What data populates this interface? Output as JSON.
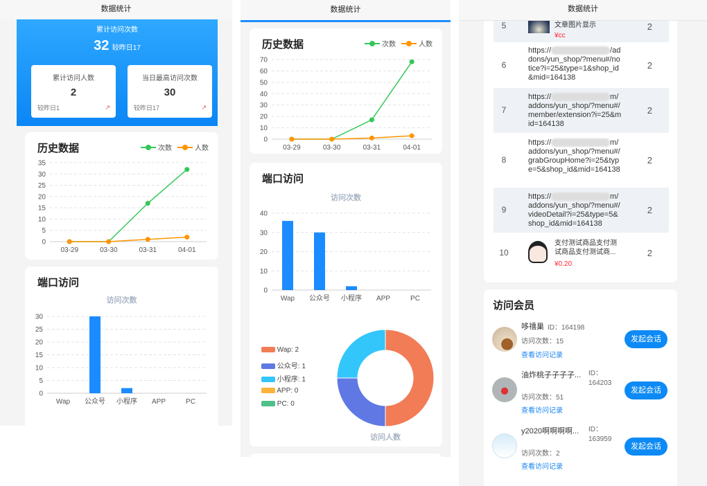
{
  "header_title": "数据统计",
  "summary": {
    "total_visits_label": "累计访问次数",
    "total_visits": "32",
    "total_visits_delta": "较昨日17",
    "cards": [
      {
        "label": "累计访问人数",
        "value": "2",
        "delta": "较昨日1",
        "icon": "trend-up-icon"
      },
      {
        "label": "当日最高访问次数",
        "value": "30",
        "delta": "较昨日17",
        "icon": "trend-up-icon"
      }
    ]
  },
  "colors": {
    "visits": "#34c759",
    "visitors": "#ff9500",
    "bar": "#1a8cff",
    "accent": "#0d8af5"
  },
  "history_title": "历史数据",
  "port_title": "端口访问",
  "chart_data": [
    {
      "type": "line",
      "title": "历史数据",
      "categories": [
        "03-29",
        "03-30",
        "03-31",
        "04-01"
      ],
      "ylim": [
        0,
        35
      ],
      "yticks": [
        0,
        5,
        10,
        15,
        20,
        25,
        30,
        35
      ],
      "grid": true,
      "legend": "top-right",
      "series": [
        {
          "name": "次数",
          "values": [
            0,
            0,
            17,
            32
          ],
          "color": "#34c759"
        },
        {
          "name": "人数",
          "values": [
            0,
            0,
            1,
            2
          ],
          "color": "#ff9500"
        }
      ]
    },
    {
      "type": "bar",
      "title": "访问次数",
      "categories": [
        "Wap",
        "公众号",
        "小程序",
        "APP",
        "PC"
      ],
      "values": [
        0,
        30,
        2,
        0,
        0
      ],
      "ylim": [
        0,
        30
      ],
      "yticks": [
        0,
        5,
        10,
        15,
        20,
        25,
        30
      ],
      "grid": true
    },
    {
      "type": "line",
      "title": "历史数据",
      "categories": [
        "03-29",
        "03-30",
        "03-31",
        "04-01"
      ],
      "ylim": [
        0,
        70
      ],
      "yticks": [
        0,
        10,
        20,
        30,
        40,
        50,
        60,
        70
      ],
      "grid": true,
      "legend": "top-right",
      "series": [
        {
          "name": "次数",
          "values": [
            0,
            0,
            17,
            68
          ],
          "color": "#34c759"
        },
        {
          "name": "人数",
          "values": [
            0,
            0,
            1,
            3
          ],
          "color": "#ff9500"
        }
      ]
    },
    {
      "type": "bar",
      "title": "访问次数",
      "categories": [
        "Wap",
        "公众号",
        "小程序",
        "APP",
        "PC"
      ],
      "values": [
        36,
        30,
        2,
        0,
        0
      ],
      "ylim": [
        0,
        40
      ],
      "yticks": [
        0,
        10,
        20,
        30,
        40
      ],
      "grid": true
    },
    {
      "type": "pie",
      "title": "访问人数",
      "legend": "left",
      "categories": [
        "Wap",
        "公众号",
        "小程序",
        "APP",
        "PC"
      ],
      "values": [
        2,
        1,
        1,
        0,
        0
      ],
      "legend_labels": [
        "Wap: 2",
        "公众号: 1",
        "小程序: 1",
        "APP: 0",
        "PC: 0"
      ],
      "colors": [
        "#f27c56",
        "#5f78e3",
        "#33c6fb",
        "#fdb23b",
        "#4ec08a"
      ]
    }
  ],
  "pages": {
    "rows": [
      {
        "rank": "5",
        "text": "文章图片显示",
        "price": "¥cc",
        "count": "2",
        "thumb": "image"
      },
      {
        "rank": "6",
        "url_a": "https://",
        "url_b": "/addons/yun_shop/?menu#/notice?i=25&type=1&shop_id&mid=164138",
        "count": "2"
      },
      {
        "rank": "7",
        "url_a": "https://",
        "url_b": "m/addons/yun_shop/?menu#/member/extension?i=25&mid=164138",
        "count": "2"
      },
      {
        "rank": "8",
        "url_a": "https://",
        "url_b": "m/addons/yun_shop/?menu#/grabGroupHome?i=25&type=5&shop_id&mid=164138",
        "count": "2"
      },
      {
        "rank": "9",
        "url_a": "https://",
        "url_b": "m/addons/yun_shop/?menu#/videoDetail?i=25&type=5&shop_id&mid=164138",
        "count": "2"
      },
      {
        "rank": "10",
        "text": "支付测试商品支付测试商品支付测试商...",
        "price": "¥0.20",
        "count": "2",
        "thumb": "avatar"
      }
    ]
  },
  "members": {
    "title": "访问会员",
    "view_label": "查看访问记录",
    "chat_label": "发起会话",
    "items": [
      {
        "name": "哆禧巢",
        "id": "ID：164198",
        "visits": "访问次数：15"
      },
      {
        "name": "油炸桃子子子子...",
        "id": "ID：164203",
        "visits": "访问次数：51"
      },
      {
        "name": "y2020啊啊啊啊...",
        "id": "ID：163959",
        "visits": "访问次数：2"
      }
    ]
  }
}
